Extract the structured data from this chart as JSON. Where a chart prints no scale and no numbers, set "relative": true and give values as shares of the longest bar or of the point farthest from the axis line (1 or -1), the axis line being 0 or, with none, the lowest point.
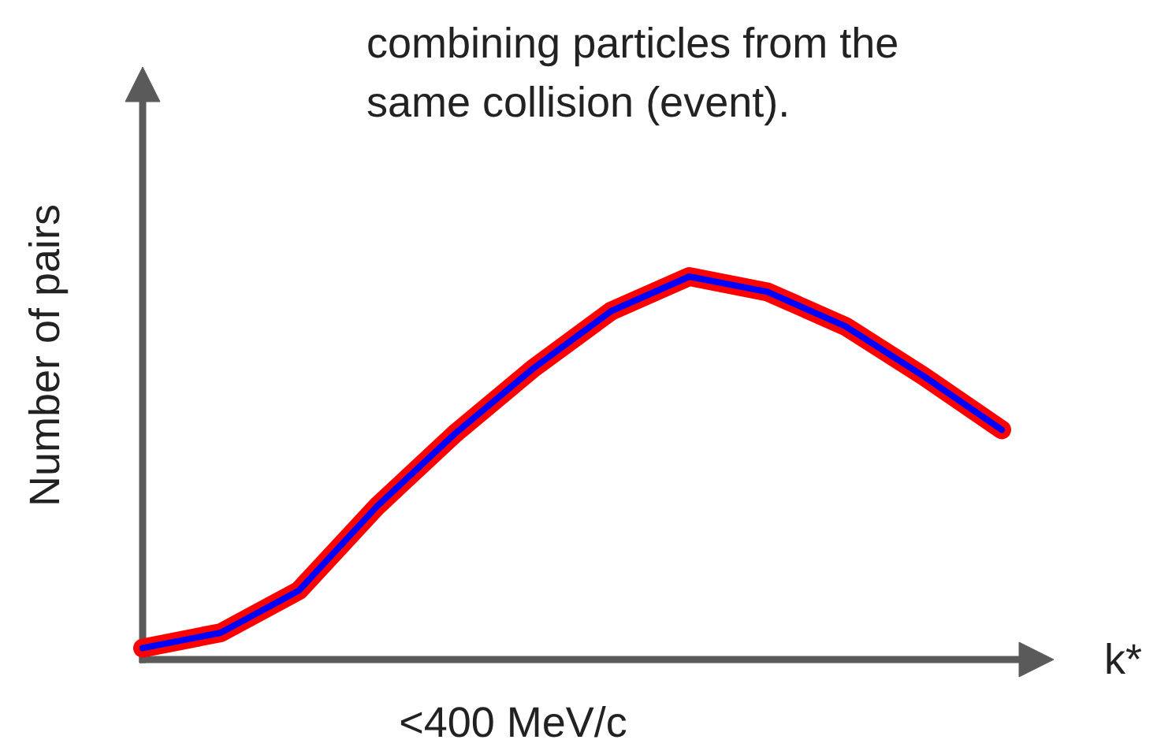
{
  "chart_data": {
    "type": "line",
    "relative": true,
    "title": "combining particles from the\nsame collision (event).",
    "xlabel": "k*",
    "ylabel": "Number of pairs",
    "annotations": [
      "<400 MeV/c"
    ],
    "categories": [
      null,
      null,
      null,
      null,
      null,
      null,
      null,
      null,
      null,
      null,
      null,
      null
    ],
    "series": [
      {
        "color": "#ff0000",
        "values": [
          0.03,
          0.07,
          0.18,
          0.4,
          0.59,
          0.76,
          0.91,
          1.0,
          0.96,
          0.87,
          0.74,
          0.6
        ]
      },
      {
        "color": "#0000ff",
        "values": [
          0.03,
          0.07,
          0.18,
          0.4,
          0.59,
          0.76,
          0.91,
          1.0,
          0.96,
          0.87,
          0.74,
          0.6
        ]
      }
    ],
    "grid": false,
    "marker": "none",
    "line_style": "solid"
  }
}
